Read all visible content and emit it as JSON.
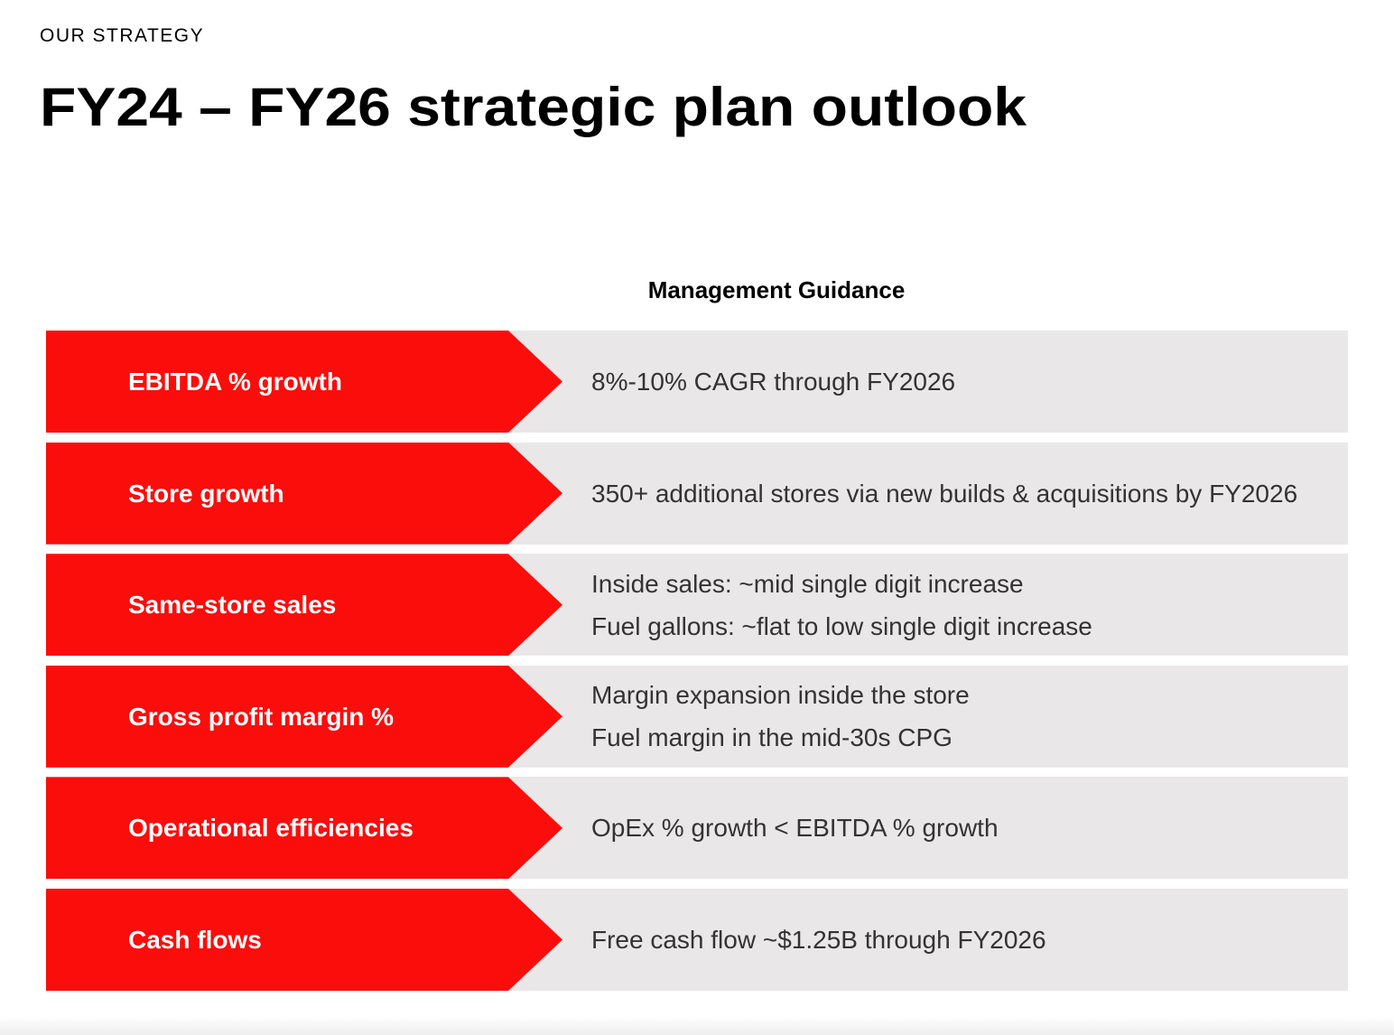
{
  "section_label": "OUR STRATEGY",
  "title": "FY24 – FY26 strategic plan outlook",
  "guidance_header": "Management Guidance",
  "colors": {
    "chevron": "#fb0d0c",
    "row_background": "#e9e7e8",
    "label_text": "#ffffff",
    "guidance_text": "#333333"
  },
  "rows": [
    {
      "metric": "EBITDA % growth",
      "guidance": [
        "8%-10% CAGR through FY2026"
      ]
    },
    {
      "metric": "Store growth",
      "guidance": [
        "350+ additional stores via new builds & acquisitions by FY2026"
      ]
    },
    {
      "metric": "Same-store sales",
      "guidance": [
        "Inside sales: ~mid single digit increase",
        "Fuel gallons: ~flat to low single digit increase"
      ]
    },
    {
      "metric": "Gross profit margin %",
      "guidance": [
        "Margin expansion inside the store",
        "Fuel margin in the mid-30s CPG"
      ]
    },
    {
      "metric": "Operational efficiencies",
      "guidance": [
        "OpEx % growth < EBITDA % growth"
      ]
    },
    {
      "metric": "Cash flows",
      "guidance": [
        "Free cash flow ~$1.25B through FY2026"
      ]
    }
  ]
}
